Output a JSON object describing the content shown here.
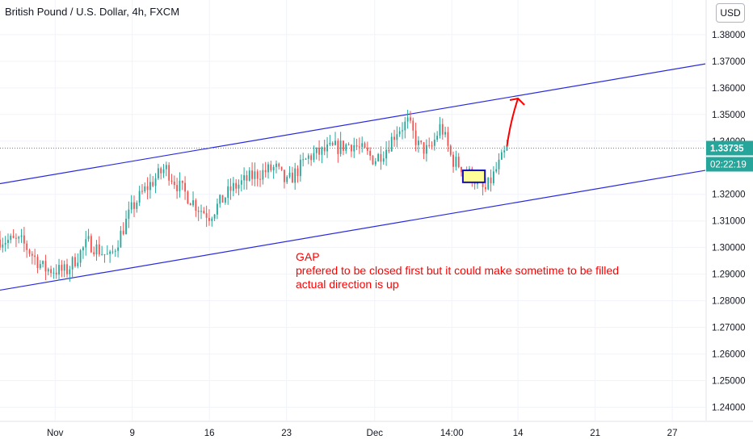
{
  "header": {
    "title": "British Pound / U.S. Dollar, 4h, FXCM",
    "currency": "USD"
  },
  "price_scale": {
    "ticks": [
      "1.38000",
      "1.37000",
      "1.36000",
      "1.35000",
      "1.34000",
      "1.32000",
      "1.31000",
      "1.30000",
      "1.29000",
      "1.28000",
      "1.27000",
      "1.26000",
      "1.25000",
      "1.24000"
    ],
    "last_price": "1.33735",
    "countdown": "02:22:19"
  },
  "time_scale": {
    "ticks": [
      "Nov",
      "9",
      "16",
      "23",
      "Dec",
      "14:00",
      "14",
      "21",
      "27"
    ]
  },
  "annotation": {
    "lines": [
      "GAP",
      "prefered to be closed first but it could make  sometime to be filled",
      "actual direction is up"
    ]
  },
  "colors": {
    "up": "#26a69a",
    "down": "#ef5350",
    "channel": "#2a2ae0",
    "annotation": "#ff0000",
    "gap_fill": "#ffff99",
    "gap_border": "#1010c0",
    "last_price_bg": "#26a69a",
    "grid": "#f0f3fa"
  },
  "chart_data": {
    "type": "candlestick",
    "symbol": "GBPUSD",
    "interval": "4h",
    "ylim": [
      1.235,
      1.393
    ],
    "close_path": [
      {
        "t": "Oct 28",
        "close": 1.303
      },
      {
        "t": "Oct 30",
        "close": 1.302
      },
      {
        "t": "Nov 1",
        "close": 1.292
      },
      {
        "t": "Nov 3",
        "close": 1.291
      },
      {
        "t": "Nov 5",
        "close": 1.302
      },
      {
        "t": "Nov 7",
        "close": 1.296
      },
      {
        "t": "Nov 9",
        "close": 1.315
      },
      {
        "t": "Nov 10",
        "close": 1.321
      },
      {
        "t": "Nov 12",
        "close": 1.33
      },
      {
        "t": "Nov 13",
        "close": 1.324
      },
      {
        "t": "Nov 15",
        "close": 1.315
      },
      {
        "t": "Nov 16",
        "close": 1.312
      },
      {
        "t": "Nov 18",
        "close": 1.322
      },
      {
        "t": "Nov 20",
        "close": 1.327
      },
      {
        "t": "Nov 22",
        "close": 1.33
      },
      {
        "t": "Nov 23",
        "close": 1.324
      },
      {
        "t": "Nov 25",
        "close": 1.334
      },
      {
        "t": "Nov 27",
        "close": 1.337
      },
      {
        "t": "Nov 29",
        "close": 1.339
      },
      {
        "t": "Dec 1",
        "close": 1.333
      },
      {
        "t": "Dec 2",
        "close": 1.337
      },
      {
        "t": "Dec 3",
        "close": 1.344
      },
      {
        "t": "Dec 4",
        "close": 1.347
      },
      {
        "t": "Dec 5",
        "close": 1.338
      },
      {
        "t": "Dec 6",
        "close": 1.336
      },
      {
        "t": "Dec 7",
        "close": 1.346
      },
      {
        "t": "Dec 8",
        "close": 1.333
      },
      {
        "t": "Dec 9",
        "close": 1.33
      },
      {
        "t": "Dec 10",
        "close": 1.326
      },
      {
        "t": "Dec 11",
        "close": 1.321
      },
      {
        "t": "Dec 13",
        "close": 1.337
      }
    ],
    "channel_upper": {
      "from": {
        "t": "Oct 28",
        "price": 1.324
      },
      "to": {
        "t": "Dec 31",
        "price": 1.369
      }
    },
    "channel_lower": {
      "from": {
        "t": "Oct 28",
        "price": 1.284
      },
      "to": {
        "t": "Dec 31",
        "price": 1.329
      }
    },
    "gap_zone": {
      "from": "Dec 9",
      "to": "Dec 11",
      "low": 1.3245,
      "high": 1.329
    },
    "projection_arrow": {
      "from": {
        "t": "Dec 13",
        "price": 1.338
      },
      "to": {
        "t": "Dec 14",
        "price": 1.356
      }
    },
    "last_price": 1.33735
  }
}
